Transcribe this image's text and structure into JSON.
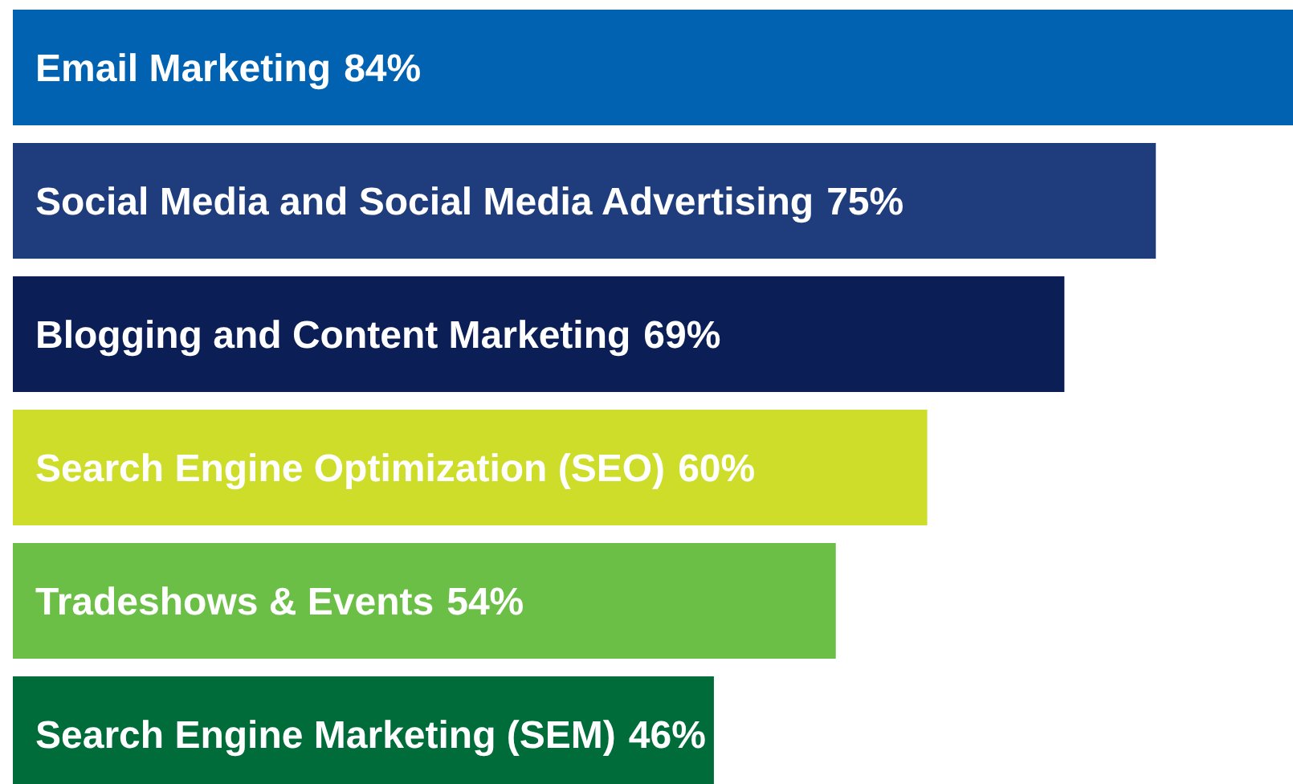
{
  "chart_data": {
    "type": "bar",
    "orientation": "horizontal",
    "categories": [
      "Email Marketing",
      "Social Media and Social Media Advertising",
      "Blogging and Content Marketing",
      "Search Engine Optimization (SEO)",
      "Tradeshows & Events",
      "Search Engine Marketing (SEM)"
    ],
    "values": [
      84,
      75,
      69,
      60,
      54,
      46
    ],
    "value_labels": [
      "84%",
      "75%",
      "69%",
      "60%",
      "54%",
      "46%"
    ],
    "colors": [
      "#0062b1",
      "#1f3d7c",
      "#0b1f56",
      "#cddd2a",
      "#6cbf46",
      "#006c3a"
    ]
  }
}
